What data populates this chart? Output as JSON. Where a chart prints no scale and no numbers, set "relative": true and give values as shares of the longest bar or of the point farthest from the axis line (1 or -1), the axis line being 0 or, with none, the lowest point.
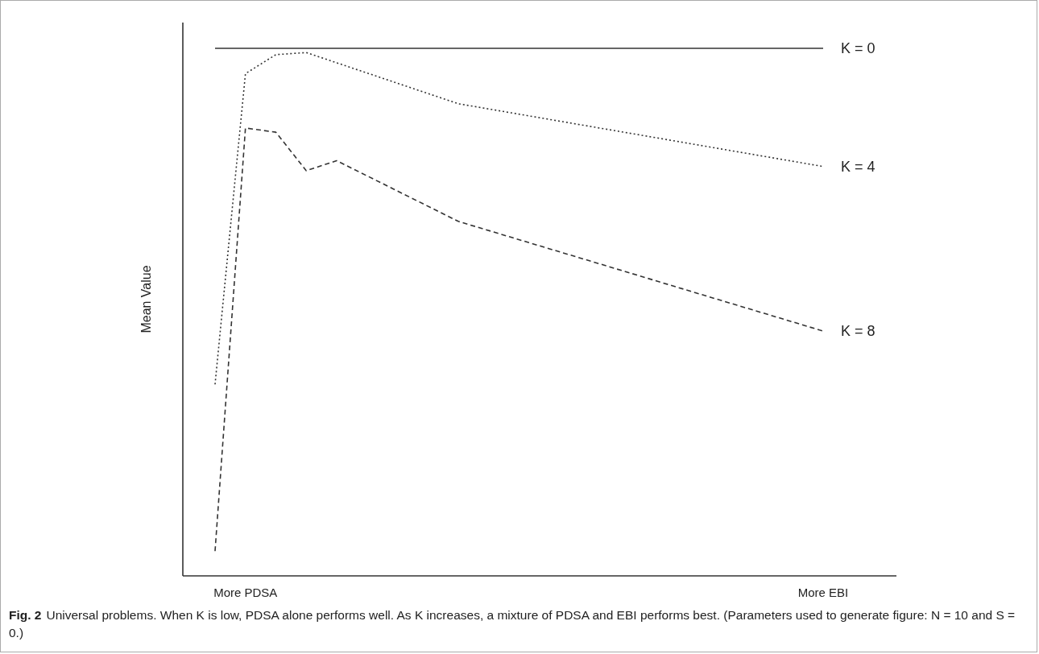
{
  "chart_data": {
    "type": "line",
    "title": "Fig. 2",
    "ylabel": "Mean Value",
    "relative": true,
    "grid": false,
    "legend": false,
    "marker": "none",
    "categories": [
      null,
      "More PDSA",
      null,
      null,
      null,
      null,
      null,
      null,
      null,
      null,
      null,
      null,
      null,
      null,
      null,
      null,
      null,
      null,
      null,
      null,
      "More EBI"
    ],
    "annotations": [
      "Universal problems. When K is low, PDSA alone performs well. As K increases, a mixture of PDSA and EBI performs best. (Parameters used to generate figure: N = 10 and S = 0.)"
    ],
    "series": [
      {
        "name": "K = 0",
        "color": "#333333",
        "line_style": "solid",
        "values": [
          1,
          null,
          null,
          null,
          null,
          null,
          null,
          null,
          null,
          null,
          null,
          null,
          null,
          null,
          null,
          null,
          null,
          null,
          null,
          null,
          1
        ]
      },
      {
        "name": "K = 4",
        "color": "#333333",
        "line_style": "dotted",
        "values": [
          0.363,
          0.952,
          0.988,
          0.992,
          null,
          null,
          null,
          null,
          0.895,
          null,
          null,
          null,
          null,
          null,
          null,
          null,
          null,
          null,
          null,
          null,
          0.776
        ]
      },
      {
        "name": "K = 8",
        "color": "#333333",
        "line_style": "dashed",
        "values": [
          0.047,
          0.849,
          0.841,
          0.768,
          0.787,
          null,
          null,
          null,
          0.672,
          null,
          null,
          null,
          null,
          null,
          null,
          null,
          null,
          null,
          null,
          null,
          0.464
        ]
      }
    ]
  }
}
